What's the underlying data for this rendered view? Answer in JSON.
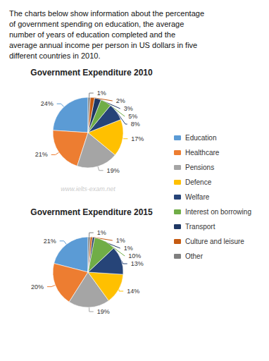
{
  "title": "The charts below show information about the percentage\nof government spending on education, the average\nnumber of years of education completed and the\naverage annual income per person in US dollars in five\ndifferent countries in 2010.",
  "annotations": [
    "www.ielts-exam.net"
  ],
  "chart_data": [
    {
      "type": "pie",
      "title": "Government Expenditure 2010",
      "categories": [
        "Education",
        "Healthcare",
        "Pensions",
        "Defence",
        "Welfare",
        "Interest on borrowing",
        "Transport",
        "Culture and leisure",
        "Other"
      ],
      "values": [
        24,
        21,
        19,
        17,
        8,
        5,
        3,
        2,
        1
      ],
      "value_labels": [
        "24%",
        "21%",
        "19%",
        "17%",
        "8%",
        "5%",
        "3%",
        "2%",
        "1%"
      ],
      "colors": [
        "#5B9BD5",
        "#ED7D31",
        "#A5A5A5",
        "#FFC000",
        "#264478",
        "#70AD47",
        "#1F3864",
        "#C55A11",
        "#7F7F7F"
      ],
      "data_labels": true,
      "legend": "right"
    },
    {
      "type": "pie",
      "title": "Government Expenditure 2015",
      "categories": [
        "Education",
        "Healthcare",
        "Pensions",
        "Defence",
        "Welfare",
        "Interest on borrowing",
        "Transport",
        "Culture and leisure",
        "Other"
      ],
      "values": [
        21,
        20,
        19,
        14,
        13,
        10,
        1,
        1,
        1
      ],
      "value_labels": [
        "21%",
        "20%",
        "19%",
        "14%",
        "13%",
        "10%",
        "1%",
        "1%",
        "1%"
      ],
      "colors": [
        "#5B9BD5",
        "#ED7D31",
        "#A5A5A5",
        "#FFC000",
        "#264478",
        "#70AD47",
        "#1F3864",
        "#C55A11",
        "#7F7F7F"
      ],
      "data_labels": true,
      "legend": "right"
    }
  ]
}
